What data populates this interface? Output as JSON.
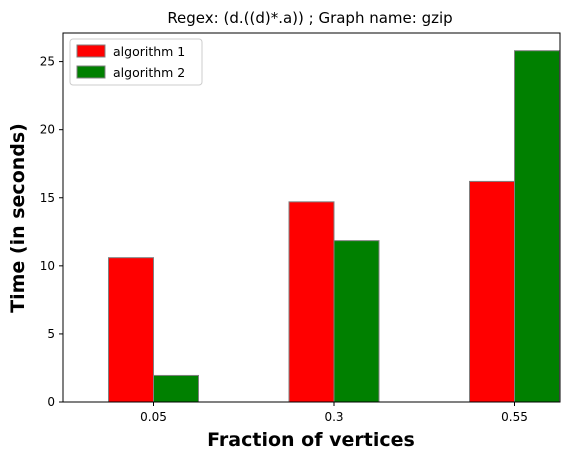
{
  "chart_data": {
    "type": "bar",
    "title": "Regex: (d.((d)*.a)) ; Graph name: gzip",
    "xlabel": "Fraction of vertices",
    "ylabel": "Time (in seconds)",
    "categories": [
      "0.05",
      "0.3",
      "0.55"
    ],
    "series": [
      {
        "name": "algorithm 1",
        "color": "#ff0000",
        "values": [
          10.6,
          14.7,
          16.2
        ]
      },
      {
        "name": "algorithm 2",
        "color": "#008000",
        "values": [
          1.95,
          11.85,
          25.8
        ]
      }
    ],
    "ylim": [
      0,
      27.1
    ],
    "yticks": [
      0,
      5,
      10,
      15,
      20,
      25
    ],
    "legend": "top-left",
    "grid": false
  }
}
